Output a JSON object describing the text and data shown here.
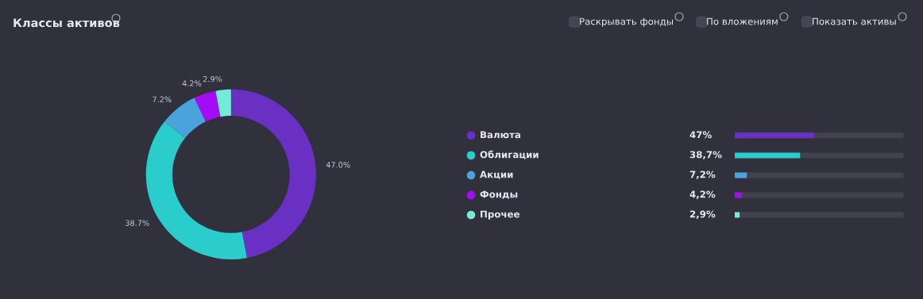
{
  "chart_data": [
    {
      "type": "donut",
      "title": "Классы активов",
      "categories": [
        "Валюта",
        "Облигации",
        "Акции",
        "Фонды",
        "Прочее"
      ],
      "values": [
        47.0,
        38.7,
        7.2,
        4.2,
        2.9
      ],
      "colors": [
        "#6a30c4",
        "#2acccc",
        "#4aa3dd",
        "#a30cf5",
        "#72ecd8"
      ],
      "value_labels": [
        "47.0%",
        "38.7%",
        "7.2%",
        "4.2%",
        "2.9%"
      ],
      "annotations": [
        "Раскрывать фонды",
        "По вложениям",
        "Показать активы"
      ],
      "legend": "right"
    },
    {
      "type": "bar",
      "orientation": "horizontal",
      "categories": [
        null,
        null,
        null,
        null,
        null
      ],
      "values": [
        47.0,
        38.7,
        7.2,
        4.2,
        2.9
      ],
      "colors": [
        "#6a30c4",
        "#2acccc",
        "#4aa3dd",
        "#a30cf5",
        "#72ecd8"
      ],
      "value_labels": [
        "47%",
        "38,7%",
        "7,2%",
        "4,2%",
        "2,9%"
      ],
      "xlim": [
        0,
        100
      ]
    }
  ]
}
